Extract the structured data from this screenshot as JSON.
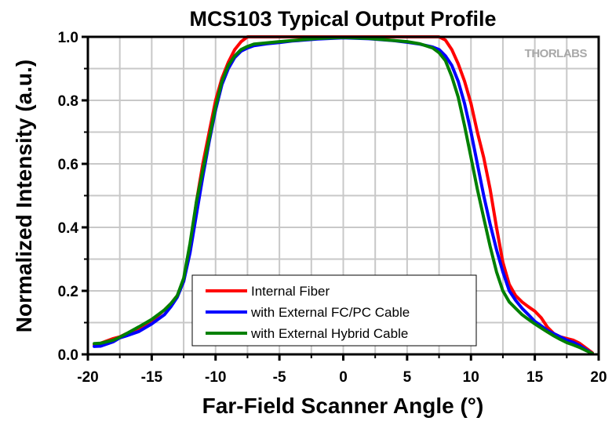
{
  "chart_data": {
    "type": "line",
    "title": "MCS103 Typical Output Profile",
    "xlabel": "Far-Field Scanner Angle (°)",
    "ylabel": "Normalized Intensity (a.u.)",
    "xlim": [
      -20,
      20
    ],
    "ylim": [
      0.0,
      1.0
    ],
    "xticks": [
      -20,
      -15,
      -10,
      -5,
      0,
      5,
      10,
      15,
      20
    ],
    "xtick_labels": [
      "-20",
      "-15",
      "-10",
      "-5",
      "0",
      "5",
      "10",
      "15",
      "20"
    ],
    "yticks": [
      0.0,
      0.2,
      0.4,
      0.6,
      0.8,
      1.0
    ],
    "ytick_labels": [
      "0.0",
      "0.2",
      "0.4",
      "0.6",
      "0.8",
      "1.0"
    ],
    "x_grid_step": 2.5,
    "y_grid_step": 0.1,
    "grid": true,
    "legend_position": "bottom-center",
    "watermark": "THORLABS",
    "series": [
      {
        "name": "Internal Fiber",
        "color": "#ff0000",
        "x": [
          -19.5,
          -19,
          -18,
          -17.5,
          -17,
          -16,
          -15,
          -14,
          -13.5,
          -13,
          -12.5,
          -12,
          -11.5,
          -11,
          -10.5,
          -10,
          -9.5,
          -9,
          -8.5,
          -8,
          -7.5,
          0,
          7.5,
          8,
          8.5,
          9,
          9.5,
          10,
          10.5,
          11,
          11.5,
          12,
          12.5,
          13,
          13.5,
          14,
          14.5,
          15,
          15.5,
          16,
          16.5,
          17,
          17.5,
          18,
          18.5,
          19,
          19.5
        ],
        "y": [
          0.03,
          0.035,
          0.05,
          0.055,
          0.065,
          0.08,
          0.105,
          0.14,
          0.16,
          0.185,
          0.23,
          0.33,
          0.48,
          0.6,
          0.7,
          0.8,
          0.87,
          0.92,
          0.96,
          0.985,
          1.0,
          1.0,
          1.0,
          0.99,
          0.96,
          0.915,
          0.86,
          0.79,
          0.7,
          0.62,
          0.52,
          0.4,
          0.29,
          0.22,
          0.185,
          0.165,
          0.15,
          0.136,
          0.115,
          0.085,
          0.065,
          0.055,
          0.05,
          0.045,
          0.035,
          0.02,
          0.005
        ]
      },
      {
        "name": "with External FC/PC Cable",
        "color": "#0000ff",
        "x": [
          -19.5,
          -19,
          -18,
          -17.5,
          -17,
          -16,
          -15,
          -14,
          -13.5,
          -13,
          -12.5,
          -12,
          -11.5,
          -11,
          -10.5,
          -10,
          -9.5,
          -9,
          -8.5,
          -8,
          -7.5,
          -7,
          -6,
          -5,
          -4,
          -2,
          0,
          2,
          4,
          5,
          6,
          7,
          7.5,
          8,
          8.5,
          9,
          9.5,
          10,
          10.5,
          11,
          11.5,
          12,
          12.5,
          13,
          13.5,
          14,
          14.5,
          15,
          15.5,
          16,
          16.5,
          17,
          17.5,
          18,
          18.5,
          19,
          19.5
        ],
        "y": [
          0.025,
          0.026,
          0.04,
          0.052,
          0.058,
          0.072,
          0.096,
          0.125,
          0.15,
          0.18,
          0.23,
          0.32,
          0.44,
          0.56,
          0.67,
          0.77,
          0.85,
          0.9,
          0.935,
          0.955,
          0.965,
          0.972,
          0.978,
          0.982,
          0.987,
          0.993,
          0.997,
          0.994,
          0.988,
          0.983,
          0.977,
          0.968,
          0.96,
          0.94,
          0.91,
          0.86,
          0.79,
          0.7,
          0.6,
          0.5,
          0.41,
          0.33,
          0.26,
          0.2,
          0.17,
          0.145,
          0.125,
          0.104,
          0.09,
          0.075,
          0.065,
          0.055,
          0.045,
          0.038,
          0.028,
          0.015,
          0.003
        ]
      },
      {
        "name": "with External Hybrid Cable",
        "color": "#008000",
        "x": [
          -19.5,
          -19,
          -18,
          -17.5,
          -17,
          -16,
          -15,
          -14,
          -13.5,
          -13,
          -12.5,
          -12,
          -11.5,
          -11,
          -10.5,
          -10,
          -9.5,
          -9,
          -8.5,
          -8,
          -7.5,
          -7,
          -5,
          -2,
          0,
          2,
          5,
          6,
          7,
          7.5,
          8,
          8.5,
          9,
          9.5,
          10,
          10.5,
          11,
          11.5,
          12,
          12.5,
          13,
          13.5,
          14,
          14.5,
          15,
          15.5,
          16,
          16.5,
          17,
          17.5,
          18,
          18.5,
          19,
          19.5
        ],
        "y": [
          0.034,
          0.035,
          0.045,
          0.054,
          0.065,
          0.087,
          0.11,
          0.14,
          0.16,
          0.185,
          0.24,
          0.35,
          0.48,
          0.58,
          0.68,
          0.78,
          0.86,
          0.91,
          0.94,
          0.96,
          0.97,
          0.977,
          0.985,
          0.995,
          0.998,
          0.995,
          0.985,
          0.978,
          0.965,
          0.95,
          0.925,
          0.875,
          0.81,
          0.72,
          0.62,
          0.52,
          0.43,
          0.34,
          0.26,
          0.2,
          0.165,
          0.145,
          0.125,
          0.11,
          0.096,
          0.083,
          0.07,
          0.058,
          0.047,
          0.037,
          0.03,
          0.022,
          0.012,
          0.003
        ]
      }
    ]
  }
}
